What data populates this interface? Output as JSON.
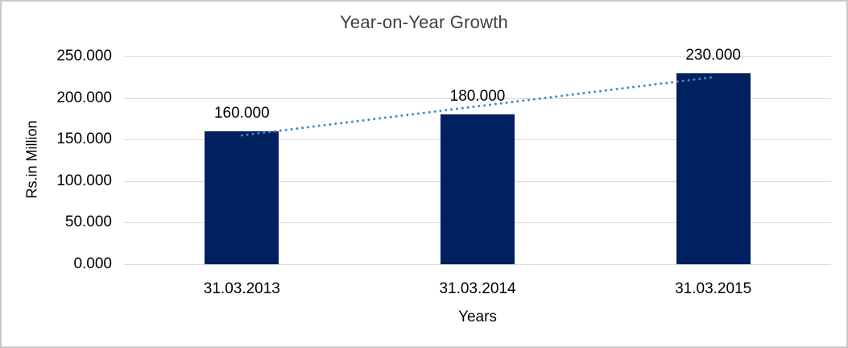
{
  "chart_data": {
    "type": "bar",
    "title": "Year-on-Year Growth",
    "categories": [
      "31.03.2013",
      "31.03.2014",
      "31.03.2015"
    ],
    "values": [
      160,
      180,
      230
    ],
    "data_labels": [
      "160.000",
      "180.000",
      "230.000"
    ],
    "xlabel": "Years",
    "ylabel": "Rs.in Million",
    "ylim": [
      0,
      250
    ],
    "ytick_step": 50,
    "ytick_labels": [
      "0.000",
      "50.000",
      "100.000",
      "150.000",
      "200.000",
      "250.000"
    ],
    "grid": true,
    "legend": "none",
    "bar_color": "#002060",
    "gridline_color": "#d9d9d9",
    "trendline": {
      "style": "dotted",
      "color": "#4a86c8",
      "start_value": 155,
      "end_value": 225
    }
  }
}
